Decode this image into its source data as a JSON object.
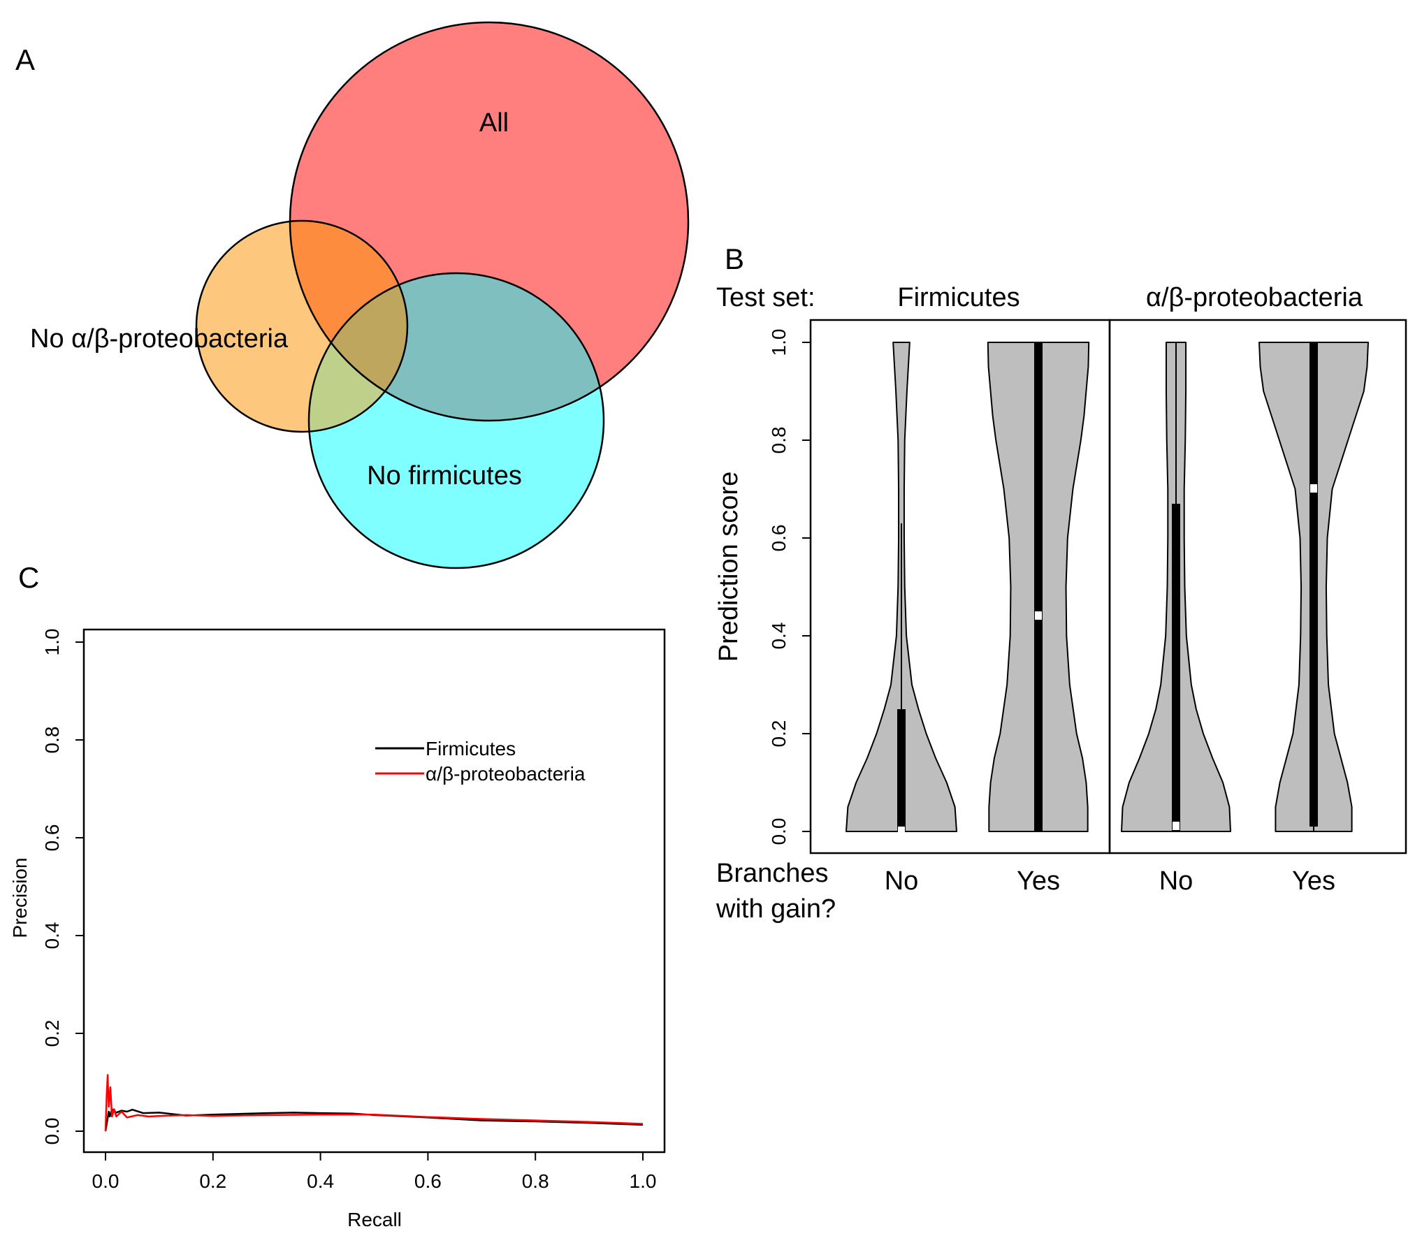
{
  "panels": {
    "a": {
      "letter": "A"
    },
    "b": {
      "letter": "B",
      "test_set_label": "Test set:",
      "xlabel_line1": "Branches",
      "xlabel_line2": "with gain?"
    },
    "c": {
      "letter": "C"
    }
  },
  "chart_data": [
    {
      "type": "venn",
      "sets": [
        {
          "name": "All",
          "color": "#ff7f7f"
        },
        {
          "name": "No α/β-proteobacteria",
          "color": "#fdc87e"
        },
        {
          "name": "No firmicutes",
          "color": "#7fffff"
        }
      ],
      "overlap_colors": {
        "all_and_no_ab": "#fe8c3f",
        "all_and_no_firm": "#7fbfbf",
        "no_ab_and_no_firm": "#bfd08a",
        "all_three": "#bfa65f"
      }
    },
    {
      "type": "violin",
      "ylabel": "Prediction score",
      "ylim": [
        0,
        1
      ],
      "yticks": [
        "0.0",
        "0.2",
        "0.4",
        "0.6",
        "0.8",
        "1.0"
      ],
      "fill_color": "#bebebe",
      "groups": [
        {
          "test_set": "Firmicutes",
          "violins": [
            {
              "x_label": "No",
              "median": 0.0,
              "q1": 0.0,
              "q3": 0.25,
              "whisker_low": 0.0,
              "whisker_high": 0.63,
              "density": [
                [
                  0.0,
                  1.0
                ],
                [
                  0.05,
                  0.97
                ],
                [
                  0.1,
                  0.82
                ],
                [
                  0.15,
                  0.62
                ],
                [
                  0.2,
                  0.45
                ],
                [
                  0.25,
                  0.31
                ],
                [
                  0.3,
                  0.19
                ],
                [
                  0.4,
                  0.09
                ],
                [
                  0.5,
                  0.06
                ],
                [
                  0.6,
                  0.05
                ],
                [
                  0.7,
                  0.05
                ],
                [
                  0.8,
                  0.06
                ],
                [
                  0.9,
                  0.1
                ],
                [
                  1.0,
                  0.15
                ]
              ]
            },
            {
              "x_label": "Yes",
              "median": 0.44,
              "q1": 0.0,
              "q3": 1.0,
              "whisker_low": 0.0,
              "whisker_high": 1.0,
              "density": [
                [
                  0.0,
                  0.93
                ],
                [
                  0.05,
                  0.93
                ],
                [
                  0.1,
                  0.9
                ],
                [
                  0.15,
                  0.83
                ],
                [
                  0.2,
                  0.72
                ],
                [
                  0.3,
                  0.59
                ],
                [
                  0.4,
                  0.53
                ],
                [
                  0.5,
                  0.52
                ],
                [
                  0.6,
                  0.55
                ],
                [
                  0.7,
                  0.65
                ],
                [
                  0.8,
                  0.8
                ],
                [
                  0.85,
                  0.86
                ],
                [
                  0.9,
                  0.9
                ],
                [
                  0.95,
                  0.94
                ],
                [
                  1.0,
                  0.95
                ]
              ]
            }
          ]
        },
        {
          "test_set": "α/β-proteobacteria",
          "violins": [
            {
              "x_label": "No",
              "median": 0.01,
              "q1": 0.0,
              "q3": 0.67,
              "whisker_low": 0.0,
              "whisker_high": 1.0,
              "density": [
                [
                  0.0,
                  1.0
                ],
                [
                  0.05,
                  0.98
                ],
                [
                  0.1,
                  0.86
                ],
                [
                  0.15,
                  0.67
                ],
                [
                  0.2,
                  0.5
                ],
                [
                  0.25,
                  0.37
                ],
                [
                  0.3,
                  0.28
                ],
                [
                  0.4,
                  0.19
                ],
                [
                  0.5,
                  0.16
                ],
                [
                  0.6,
                  0.15
                ],
                [
                  0.7,
                  0.15
                ],
                [
                  0.8,
                  0.17
                ],
                [
                  0.9,
                  0.18
                ],
                [
                  1.0,
                  0.18
                ]
              ]
            },
            {
              "x_label": "Yes",
              "median": 0.7,
              "q1": 0.01,
              "q3": 1.0,
              "whisker_low": 0.0,
              "whisker_high": 1.0,
              "density": [
                [
                  0.0,
                  0.7
                ],
                [
                  0.05,
                  0.7
                ],
                [
                  0.1,
                  0.62
                ],
                [
                  0.15,
                  0.5
                ],
                [
                  0.2,
                  0.38
                ],
                [
                  0.3,
                  0.27
                ],
                [
                  0.4,
                  0.24
                ],
                [
                  0.5,
                  0.23
                ],
                [
                  0.6,
                  0.25
                ],
                [
                  0.7,
                  0.34
                ],
                [
                  0.8,
                  0.63
                ],
                [
                  0.9,
                  0.92
                ],
                [
                  0.95,
                  0.98
                ],
                [
                  1.0,
                  1.0
                ]
              ]
            }
          ]
        }
      ]
    },
    {
      "type": "line",
      "xlabel": "Recall",
      "ylabel": "Precision",
      "xlim": [
        0,
        1
      ],
      "ylim": [
        0,
        1
      ],
      "xticks": [
        "0.0",
        "0.2",
        "0.4",
        "0.6",
        "0.8",
        "1.0"
      ],
      "yticks": [
        "0.0",
        "0.2",
        "0.4",
        "0.6",
        "0.8",
        "1.0"
      ],
      "legend_position": "top-right",
      "series": [
        {
          "name": "Firmicutes",
          "color": "#000000",
          "points": [
            [
              0.0,
              0.0
            ],
            [
              0.003,
              0.02
            ],
            [
              0.006,
              0.04
            ],
            [
              0.008,
              0.03
            ],
            [
              0.012,
              0.045
            ],
            [
              0.02,
              0.038
            ],
            [
              0.03,
              0.042
            ],
            [
              0.04,
              0.04
            ],
            [
              0.05,
              0.044
            ],
            [
              0.07,
              0.037
            ],
            [
              0.1,
              0.038
            ],
            [
              0.15,
              0.032
            ],
            [
              0.2,
              0.034
            ],
            [
              0.3,
              0.037
            ],
            [
              0.35,
              0.038
            ],
            [
              0.4,
              0.037
            ],
            [
              0.46,
              0.036
            ],
            [
              0.5,
              0.033
            ],
            [
              0.6,
              0.028
            ],
            [
              0.7,
              0.022
            ],
            [
              0.8,
              0.02
            ],
            [
              0.9,
              0.017
            ],
            [
              1.0,
              0.013
            ]
          ]
        },
        {
          "name": "α/β-proteobacteria",
          "color": "#ff0000",
          "points": [
            [
              0.0,
              0.0
            ],
            [
              0.002,
              0.07
            ],
            [
              0.004,
              0.115
            ],
            [
              0.006,
              0.05
            ],
            [
              0.009,
              0.09
            ],
            [
              0.012,
              0.03
            ],
            [
              0.016,
              0.045
            ],
            [
              0.02,
              0.03
            ],
            [
              0.03,
              0.04
            ],
            [
              0.04,
              0.028
            ],
            [
              0.06,
              0.033
            ],
            [
              0.08,
              0.03
            ],
            [
              0.1,
              0.031
            ],
            [
              0.15,
              0.033
            ],
            [
              0.2,
              0.031
            ],
            [
              0.3,
              0.033
            ],
            [
              0.4,
              0.034
            ],
            [
              0.5,
              0.034
            ],
            [
              0.6,
              0.029
            ],
            [
              0.7,
              0.025
            ],
            [
              0.8,
              0.022
            ],
            [
              0.9,
              0.019
            ],
            [
              1.0,
              0.015
            ]
          ]
        }
      ]
    }
  ]
}
